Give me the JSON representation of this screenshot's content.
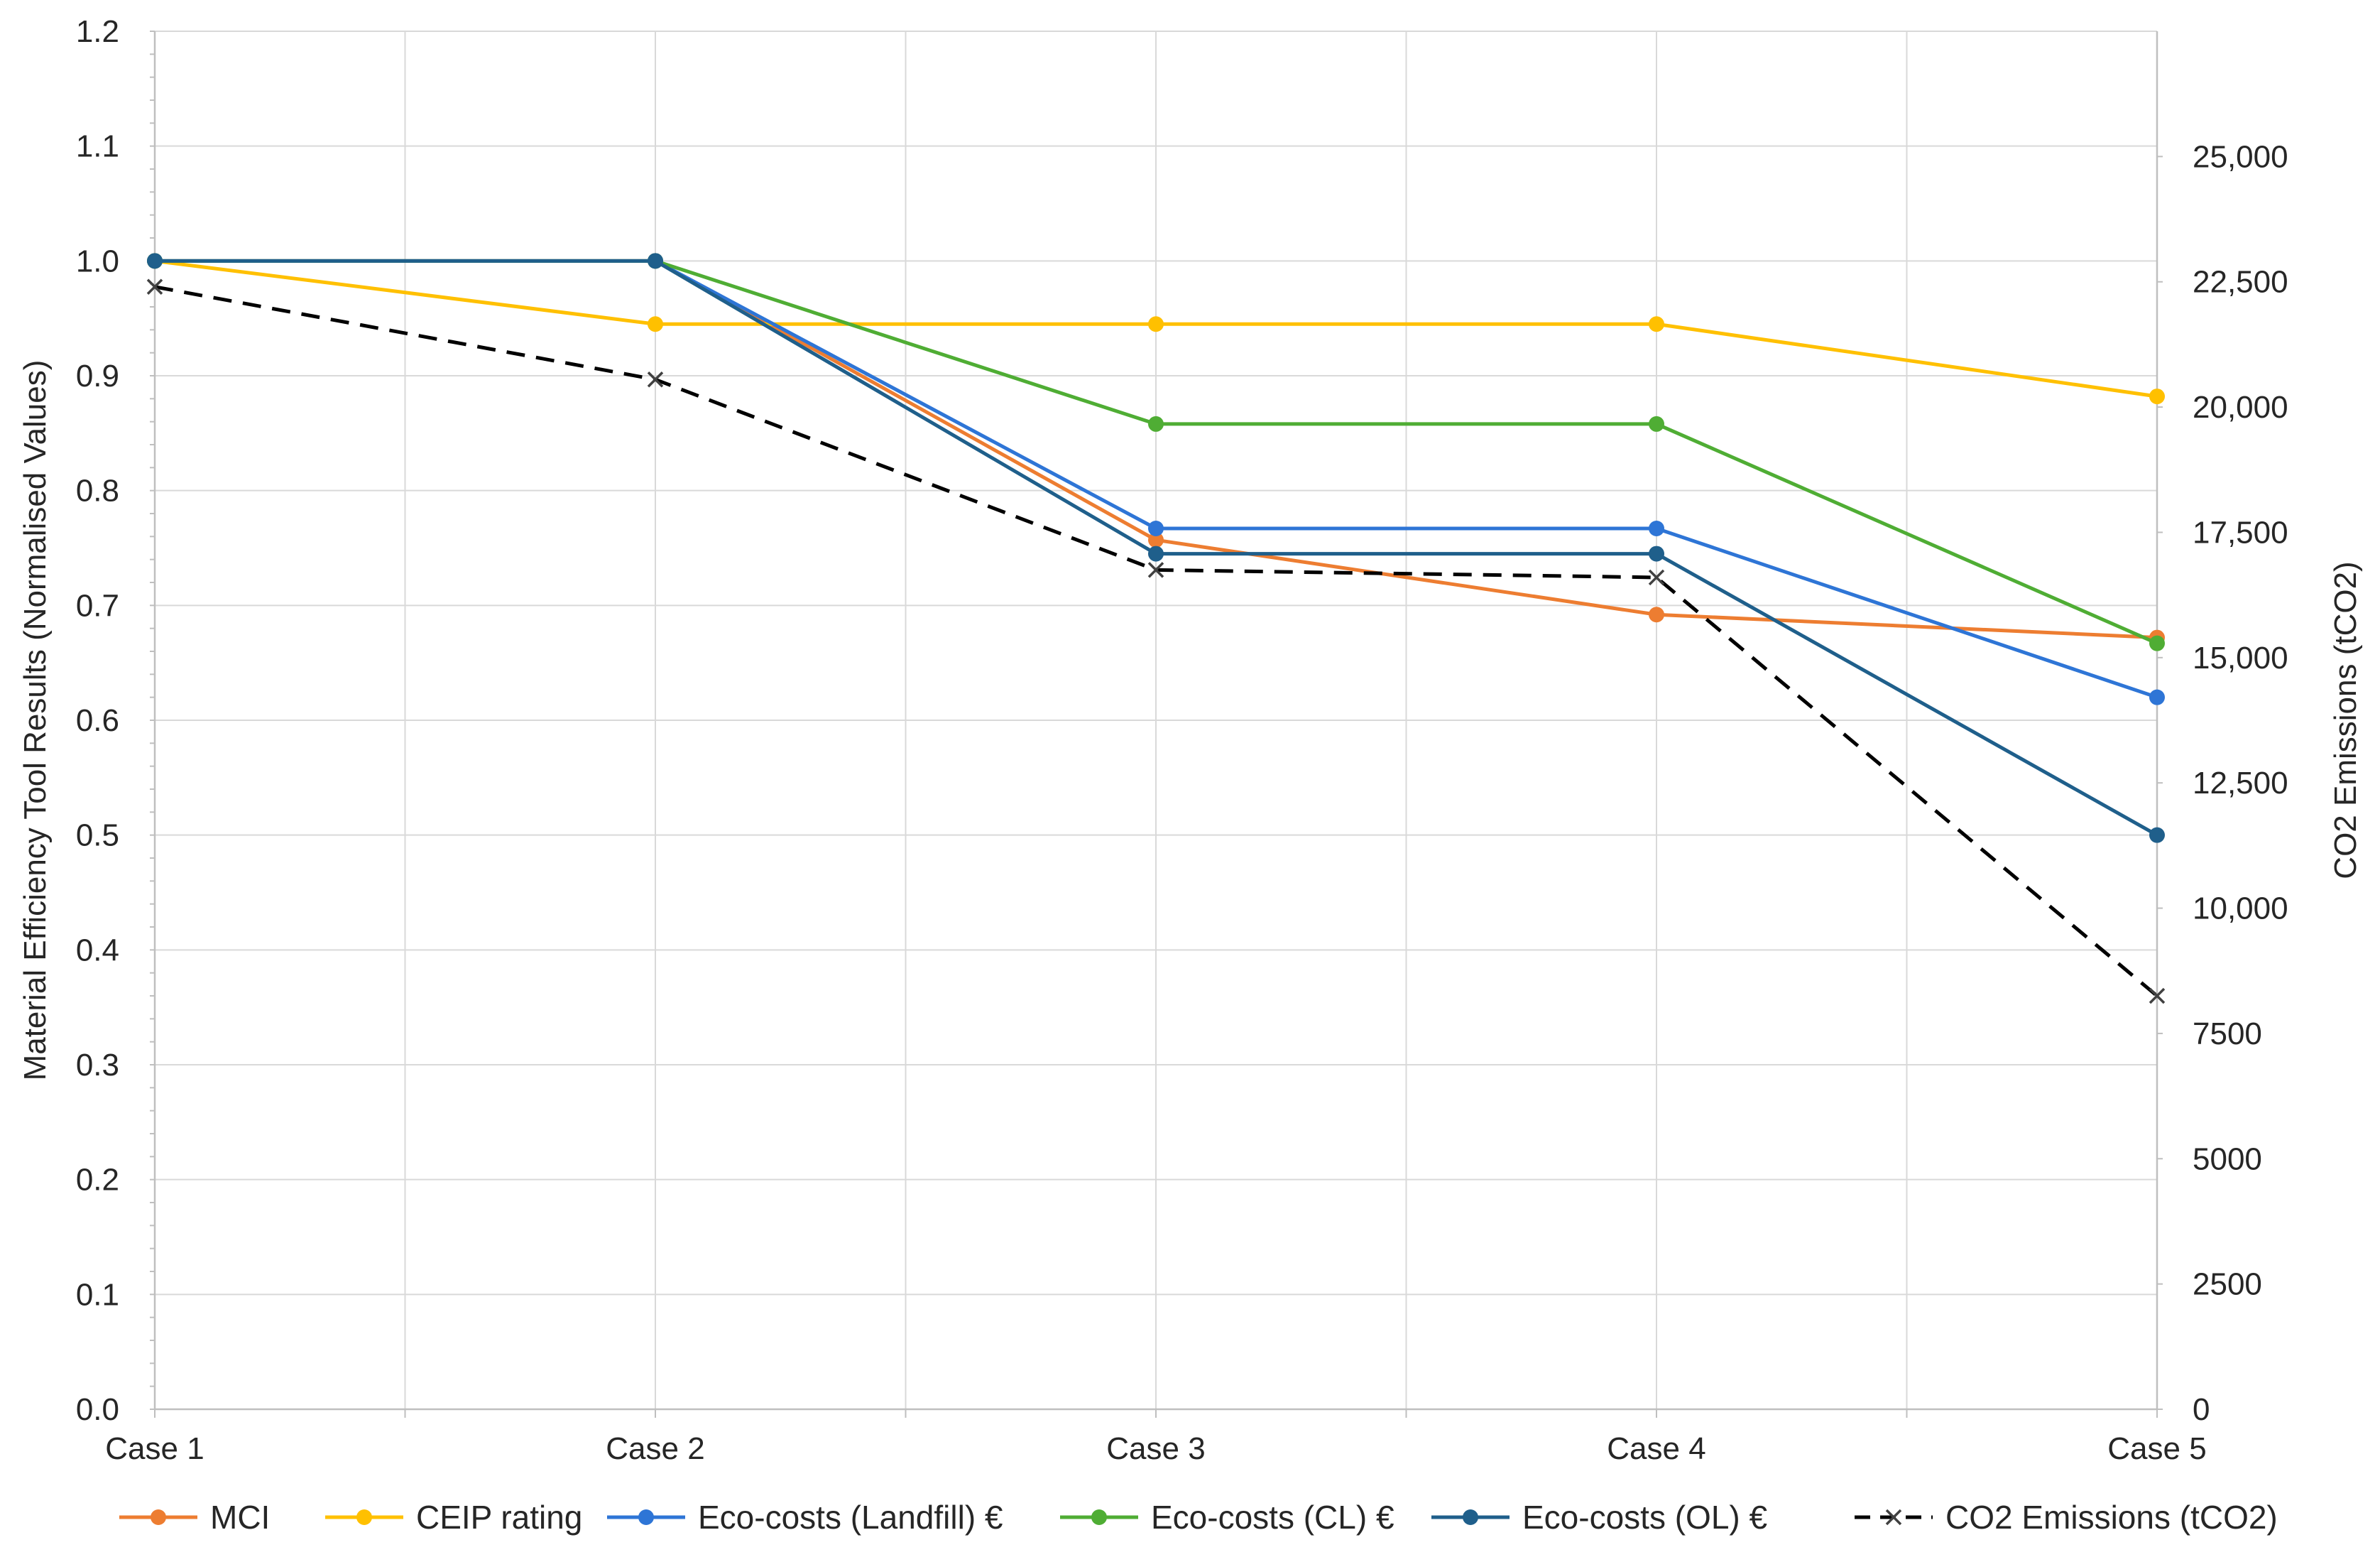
{
  "chart_data": {
    "type": "line",
    "title": "",
    "categories": [
      "Case 1",
      "Case 2",
      "Case 3",
      "Case 4",
      "Case 5"
    ],
    "xlabel": "",
    "ylabel": "Material Efficiency Tool Results (Normalised Values)",
    "y2label": "CO2 Emissions (tCO2)",
    "ylim": [
      0,
      1.2
    ],
    "y2lim": [
      0,
      27500
    ],
    "yticks": [
      0,
      0.1,
      0.2,
      0.3,
      0.4,
      0.5,
      0.6,
      0.7,
      0.8,
      0.9,
      1.0,
      1.1,
      1.2
    ],
    "ytick_labels": [
      "0.0",
      "0.1",
      "0.2",
      "0.3",
      "0.4",
      "0.5",
      "0.6",
      "0.7",
      "0.8",
      "0.9",
      "1.0",
      "1.1",
      "1.2"
    ],
    "y2ticks": [
      0,
      2500,
      5000,
      7500,
      10000,
      12500,
      15000,
      17500,
      20000,
      22500,
      25000
    ],
    "y2tick_labels": [
      "0",
      "2500",
      "5000",
      "7500",
      "10,000",
      "12,500",
      "15,000",
      "17,500",
      "20,000",
      "22,500",
      "25,000"
    ],
    "grid": true,
    "legend_position": "bottom",
    "series": [
      {
        "name": "MCI",
        "axis": "left",
        "color": "#ED7D31",
        "marker": "circle",
        "dash": "solid",
        "values": [
          1.0,
          1.0,
          0.757,
          0.692,
          0.672
        ]
      },
      {
        "name": "CEIP rating",
        "axis": "left",
        "color": "#FFC000",
        "marker": "circle",
        "dash": "solid",
        "values": [
          1.0,
          0.945,
          0.945,
          0.945,
          0.882
        ]
      },
      {
        "name": "Eco-costs (Landfill) €",
        "axis": "left",
        "color": "#2E75D6",
        "marker": "circle",
        "dash": "solid",
        "values": [
          1.0,
          1.0,
          0.767,
          0.767,
          0.62
        ]
      },
      {
        "name": "Eco-costs (CL) €",
        "axis": "left",
        "color": "#4FAD34",
        "marker": "circle",
        "dash": "solid",
        "values": [
          1.0,
          1.0,
          0.858,
          0.858,
          0.667
        ]
      },
      {
        "name": "Eco-costs (OL) €",
        "axis": "left",
        "color": "#1F5F8B",
        "marker": "circle",
        "dash": "solid",
        "values": [
          1.0,
          1.0,
          0.745,
          0.745,
          0.5
        ]
      },
      {
        "name": "CO2 Emissions (tCO2)",
        "axis": "right",
        "color": "#000000",
        "marker": "x",
        "dash": "dashed",
        "values": [
          22400,
          20550,
          16750,
          16600,
          8250
        ]
      }
    ]
  }
}
